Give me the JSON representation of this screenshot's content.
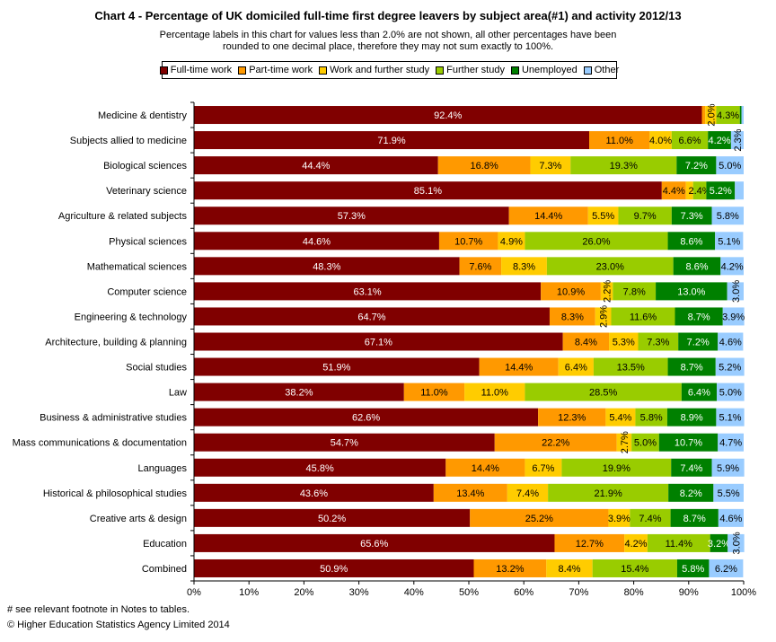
{
  "chart_data": {
    "type": "bar",
    "orientation": "horizontal",
    "stacked": true,
    "title": "Chart 4 - Percentage of UK domiciled full-time first degree leavers by subject area(#1) and activity 2012/13",
    "subtitle": "Percentage labels in this chart for values less than 2.0% are not shown, all other percentages have been rounded to one decimal place, therefore they may not sum exactly to 100%.",
    "xlim": [
      0,
      100
    ],
    "xticks": [
      "0%",
      "10%",
      "20%",
      "30%",
      "40%",
      "50%",
      "60%",
      "70%",
      "80%",
      "90%",
      "100%"
    ],
    "grid": false,
    "legend_position": "top",
    "categories": [
      "Medicine & dentistry",
      "Subjects allied to medicine",
      "Biological sciences",
      "Veterinary science",
      "Agriculture & related subjects",
      "Physical sciences",
      "Mathematical sciences",
      "Computer science",
      "Engineering & technology",
      "Architecture, building & planning",
      "Social studies",
      "Law",
      "Business & administrative studies",
      "Mass communications & documentation",
      "Languages",
      "Historical & philosophical studies",
      "Creative arts & design",
      "Education",
      "Combined"
    ],
    "series": [
      {
        "name": "Full-time work",
        "color": "#800000",
        "values": [
          92.4,
          71.9,
          44.4,
          85.1,
          57.3,
          44.6,
          48.3,
          63.1,
          64.7,
          67.1,
          51.9,
          38.2,
          62.6,
          54.7,
          45.8,
          43.6,
          50.2,
          65.6,
          50.9
        ]
      },
      {
        "name": "Part-time work",
        "color": "#ff9900",
        "values": [
          0.6,
          11.0,
          16.8,
          4.4,
          14.4,
          10.7,
          7.6,
          10.9,
          8.3,
          8.4,
          14.4,
          11.0,
          12.3,
          22.2,
          14.4,
          13.4,
          25.2,
          12.7,
          13.2
        ]
      },
      {
        "name": "Work and further study",
        "color": "#ffcc00",
        "values": [
          2.0,
          4.0,
          7.3,
          1.3,
          5.5,
          4.9,
          8.3,
          2.2,
          2.9,
          5.3,
          6.4,
          11.0,
          5.4,
          2.7,
          6.7,
          7.4,
          3.9,
          4.2,
          8.4
        ]
      },
      {
        "name": "Further study",
        "color": "#99cc00",
        "values": [
          4.3,
          6.6,
          19.3,
          2.4,
          9.7,
          26.0,
          23.0,
          7.8,
          11.6,
          7.3,
          13.5,
          28.5,
          5.8,
          5.0,
          19.9,
          21.9,
          7.4,
          11.4,
          15.4
        ]
      },
      {
        "name": "Unemployed",
        "color": "#008000",
        "values": [
          0.3,
          4.2,
          7.2,
          5.2,
          7.3,
          8.6,
          8.6,
          13.0,
          8.7,
          7.2,
          8.7,
          6.4,
          8.9,
          10.7,
          7.4,
          8.2,
          8.7,
          3.2,
          5.8
        ]
      },
      {
        "name": "Other",
        "color": "#99ccff",
        "values": [
          0.4,
          2.3,
          5.0,
          1.6,
          5.8,
          5.1,
          4.2,
          3.0,
          3.9,
          4.6,
          5.2,
          5.0,
          5.1,
          4.7,
          5.9,
          5.5,
          4.6,
          3.0,
          6.2
        ]
      }
    ],
    "min_label_value": 2.0,
    "vertical_labels": [
      [
        0,
        1
      ],
      [
        0,
        2
      ],
      [
        1,
        5
      ],
      [
        3,
        2
      ],
      [
        7,
        2
      ],
      [
        7,
        5
      ],
      [
        8,
        2
      ],
      [
        13,
        2
      ],
      [
        17,
        5
      ]
    ]
  },
  "footnote": "# see relevant footnote in Notes to tables.",
  "copyright": "© Higher Education Statistics Agency Limited 2014"
}
